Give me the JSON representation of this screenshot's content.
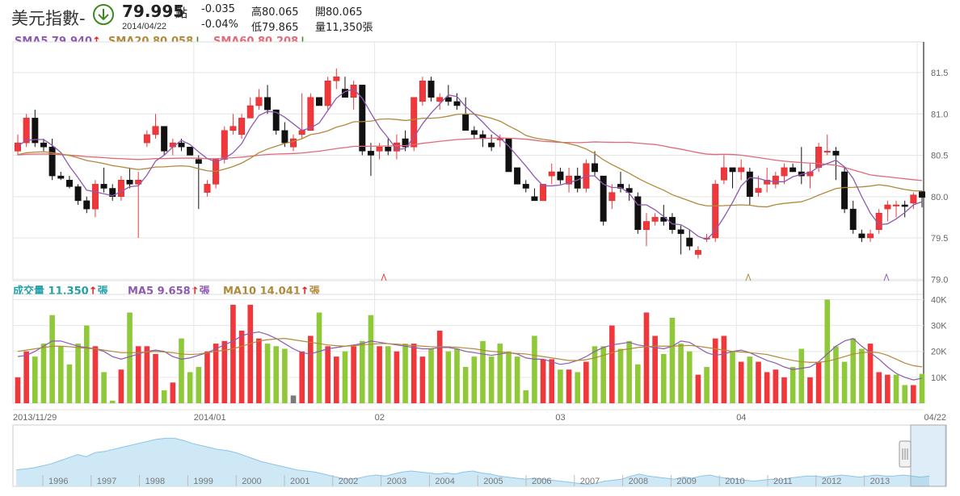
{
  "header": {
    "name": "美元指數-",
    "price": "79.995",
    "price_unit": "點",
    "date": "2014/04/22",
    "change": "-0.035",
    "change_pct": "-0.04%",
    "high": "高80.065",
    "low": "低79.865",
    "open": "開80.065",
    "volume": "量11,350張",
    "trend_icon": "down-arrow-circle-icon"
  },
  "legend_price": {
    "sma5": "SMA5 79.940",
    "sma5_dir": "↑",
    "sma20": "SMA20 80.058",
    "sma20_dir": "↓",
    "sma60": "SMA60 80.208",
    "sma60_dir": "↓"
  },
  "legend_volume": {
    "vol": "成交量 11,350",
    "vol_dir": "↑",
    "vol_unit": "張",
    "ma5": "MA5 9,658",
    "ma5_dir": "↑",
    "ma5_unit": "張",
    "ma10": "MA10 14,041",
    "ma10_dir": "↑",
    "ma10_unit": "張"
  },
  "overview_years": [
    "1996",
    "1997",
    "1998",
    "1999",
    "2000",
    "2001",
    "2002",
    "2003",
    "2004",
    "2005",
    "2006",
    "2007",
    "2008",
    "2009",
    "2010",
    "2011",
    "2012",
    "2013"
  ],
  "colors": {
    "up": "#f0373b",
    "down": "#111111",
    "vol_up": "#f0373b",
    "vol_down": "#8fc93a",
    "vol_flat": "#7a7a7a",
    "sma5": "#8e5ab0",
    "sma20": "#b08a3a",
    "sma60": "#e26a78",
    "cyan_label": "#22a0a8",
    "overview_fill": "#cfe8f5",
    "overview_line": "#8cc4e6"
  },
  "chart_data": [
    {
      "type": "candlestick",
      "title": "",
      "x_ticks": [
        "2013/11/29",
        "2014/01",
        "02",
        "03",
        "04",
        "04/22"
      ],
      "y_ticks": [
        "81.5",
        "81.0",
        "80.5",
        "80.0",
        "79.5",
        "79.0"
      ],
      "ylim": [
        79.0,
        81.8
      ],
      "ohlc": [
        [
          80.55,
          80.75,
          80.5,
          80.65
        ],
        [
          80.65,
          81.0,
          80.6,
          80.95
        ],
        [
          80.95,
          81.05,
          80.6,
          80.65
        ],
        [
          80.65,
          80.7,
          80.55,
          80.6
        ],
        [
          80.6,
          80.7,
          80.2,
          80.25
        ],
        [
          80.25,
          80.3,
          80.2,
          80.22
        ],
        [
          80.2,
          80.25,
          80.1,
          80.12
        ],
        [
          80.12,
          80.15,
          79.9,
          79.95
        ],
        [
          79.95,
          80.0,
          79.8,
          79.85
        ],
        [
          79.85,
          80.2,
          79.75,
          80.15
        ],
        [
          80.15,
          80.35,
          80.05,
          80.1
        ],
        [
          80.1,
          80.15,
          79.95,
          80.0
        ],
        [
          80.0,
          80.25,
          79.95,
          80.2
        ],
        [
          80.2,
          80.35,
          80.1,
          80.15
        ],
        [
          80.15,
          80.3,
          79.5,
          80.2
        ],
        [
          80.65,
          80.8,
          80.6,
          80.75
        ],
        [
          80.75,
          81.0,
          80.7,
          80.85
        ],
        [
          80.85,
          80.85,
          80.5,
          80.55
        ],
        [
          80.6,
          80.7,
          80.5,
          80.65
        ],
        [
          80.65,
          80.7,
          80.55,
          80.6
        ],
        [
          80.6,
          80.6,
          80.5,
          80.5
        ],
        [
          80.45,
          80.5,
          79.85,
          80.4
        ],
        [
          80.05,
          80.2,
          80.0,
          80.15
        ],
        [
          80.15,
          80.45,
          80.1,
          80.45
        ],
        [
          80.45,
          80.85,
          80.4,
          80.8
        ],
        [
          80.8,
          81.0,
          80.75,
          80.85
        ],
        [
          80.75,
          81.0,
          80.7,
          80.95
        ],
        [
          80.95,
          81.2,
          80.95,
          81.1
        ],
        [
          81.1,
          81.3,
          81.05,
          81.2
        ],
        [
          81.2,
          81.35,
          81.0,
          81.05
        ],
        [
          81.05,
          81.05,
          80.75,
          80.8
        ],
        [
          80.8,
          80.9,
          80.6,
          80.65
        ],
        [
          80.6,
          80.75,
          80.55,
          80.7
        ],
        [
          80.75,
          81.25,
          80.7,
          80.8
        ],
        [
          80.8,
          81.25,
          80.8,
          81.2
        ],
        [
          81.2,
          81.2,
          81.1,
          81.1
        ],
        [
          81.1,
          81.45,
          81.05,
          81.4
        ],
        [
          81.4,
          81.55,
          81.3,
          81.45
        ],
        [
          81.3,
          81.45,
          81.2,
          81.2
        ],
        [
          81.2,
          81.4,
          81.05,
          81.35
        ],
        [
          81.35,
          81.35,
          80.5,
          80.55
        ],
        [
          80.55,
          80.65,
          80.25,
          80.5
        ],
        [
          80.55,
          80.65,
          80.45,
          80.6
        ],
        [
          80.6,
          80.7,
          80.5,
          80.55
        ],
        [
          80.55,
          80.75,
          80.45,
          80.65
        ],
        [
          80.7,
          80.8,
          80.55,
          80.6
        ],
        [
          80.6,
          81.2,
          80.55,
          81.2
        ],
        [
          81.15,
          81.45,
          81.1,
          81.4
        ],
        [
          81.4,
          81.45,
          81.15,
          81.2
        ],
        [
          81.15,
          81.25,
          81.05,
          81.2
        ],
        [
          81.2,
          81.35,
          81.1,
          81.15
        ],
        [
          81.15,
          81.25,
          81.05,
          81.1
        ],
        [
          81.0,
          81.2,
          80.8,
          80.8
        ],
        [
          80.8,
          80.85,
          80.7,
          80.75
        ],
        [
          80.75,
          80.8,
          80.6,
          80.7
        ],
        [
          80.65,
          80.75,
          80.55,
          80.6
        ],
        [
          80.7,
          80.75,
          80.6,
          80.7
        ],
        [
          80.7,
          80.7,
          80.3,
          80.3
        ],
        [
          80.35,
          80.35,
          80.15,
          80.15
        ],
        [
          80.15,
          80.2,
          80.05,
          80.1
        ],
        [
          80.0,
          80.1,
          79.95,
          79.95
        ],
        [
          79.95,
          80.15,
          79.95,
          80.15
        ],
        [
          80.25,
          80.4,
          80.15,
          80.3
        ],
        [
          80.3,
          80.35,
          80.15,
          80.2
        ],
        [
          80.15,
          80.35,
          80.05,
          80.25
        ],
        [
          80.25,
          80.35,
          80.05,
          80.1
        ],
        [
          80.1,
          80.45,
          80.05,
          80.4
        ],
        [
          80.4,
          80.55,
          80.25,
          80.3
        ],
        [
          80.25,
          80.25,
          79.65,
          79.7
        ],
        [
          79.95,
          80.15,
          79.85,
          80.05
        ],
        [
          80.15,
          80.3,
          80.05,
          80.1
        ],
        [
          80.1,
          80.15,
          79.95,
          80.05
        ],
        [
          80.0,
          80.05,
          79.55,
          79.6
        ],
        [
          79.6,
          79.8,
          79.4,
          79.7
        ],
        [
          79.7,
          79.8,
          79.65,
          79.75
        ],
        [
          79.75,
          79.9,
          79.65,
          79.7
        ],
        [
          79.75,
          79.8,
          79.55,
          79.6
        ],
        [
          79.6,
          79.65,
          79.3,
          79.55
        ],
        [
          79.5,
          79.6,
          79.35,
          79.4
        ],
        [
          79.3,
          79.4,
          79.25,
          79.35
        ],
        [
          79.5,
          79.55,
          79.45,
          79.5
        ],
        [
          79.5,
          80.2,
          79.45,
          80.15
        ],
        [
          80.2,
          80.5,
          80.15,
          80.35
        ],
        [
          80.35,
          80.35,
          80.1,
          80.3
        ],
        [
          80.3,
          80.45,
          80.2,
          80.35
        ],
        [
          80.3,
          80.35,
          79.9,
          80.0
        ],
        [
          80.05,
          80.25,
          80.0,
          80.1
        ],
        [
          80.15,
          80.35,
          80.05,
          80.2
        ],
        [
          80.15,
          80.3,
          80.1,
          80.25
        ],
        [
          80.25,
          80.4,
          80.15,
          80.35
        ],
        [
          80.35,
          80.4,
          80.3,
          80.3
        ],
        [
          80.3,
          80.6,
          80.15,
          80.25
        ],
        [
          80.25,
          80.4,
          80.1,
          80.3
        ],
        [
          80.35,
          80.65,
          80.3,
          80.6
        ],
        [
          80.55,
          80.75,
          80.5,
          80.55
        ],
        [
          80.55,
          80.6,
          80.2,
          80.5
        ],
        [
          80.3,
          80.35,
          79.8,
          79.85
        ],
        [
          79.85,
          79.95,
          79.55,
          79.6
        ],
        [
          79.55,
          79.6,
          79.45,
          79.5
        ],
        [
          79.5,
          79.6,
          79.45,
          79.55
        ],
        [
          79.6,
          79.85,
          79.55,
          79.8
        ],
        [
          79.85,
          79.95,
          79.7,
          79.9
        ],
        [
          79.9,
          79.95,
          79.75,
          79.9
        ],
        [
          79.9,
          79.95,
          79.75,
          79.88
        ],
        [
          79.92,
          80.05,
          79.85,
          80.02
        ],
        [
          80.06,
          80.07,
          79.87,
          79.99
        ]
      ]
    },
    {
      "type": "bar",
      "title": "",
      "y_ticks": [
        "40K",
        "30K",
        "20K",
        "10K"
      ],
      "ylim": [
        0,
        42000
      ],
      "values": [
        10000,
        20000,
        18000,
        23000,
        34000,
        22000,
        15000,
        23000,
        30000,
        22000,
        12000,
        1000,
        13000,
        35000,
        22000,
        22000,
        19000,
        5000,
        8000,
        25000,
        12000,
        14000,
        20000,
        23000,
        24000,
        38000,
        28000,
        38000,
        25000,
        23000,
        22000,
        21000,
        3000,
        20000,
        26000,
        35000,
        22000,
        18000,
        20000,
        22000,
        24000,
        34000,
        22000,
        22000,
        20000,
        23000,
        23000,
        18000,
        21000,
        28000,
        20000,
        21000,
        14000,
        18000,
        24000,
        18000,
        23000,
        20000,
        18000,
        5000,
        26000,
        17000,
        17000,
        13000,
        13000,
        12000,
        16000,
        22000,
        22000,
        30000,
        21000,
        24000,
        15000,
        35000,
        26000,
        19000,
        33000,
        23000,
        20000,
        11000,
        14000,
        25000,
        26000,
        20000,
        16000,
        18000,
        16000,
        12000,
        13000,
        10000,
        14000,
        21000,
        10000,
        16000,
        40000,
        22000,
        16000,
        25000,
        21000,
        23000,
        12000,
        11000,
        11000,
        7000,
        7000,
        11350
      ],
      "series": [
        {
          "name": "MA5",
          "values": [
            18000,
            18500,
            20000,
            22000,
            24000,
            24000,
            23000,
            22000,
            21500,
            21000,
            20000,
            18000,
            17000,
            18000,
            19000,
            20000,
            20500,
            20000,
            18000,
            17000,
            17500,
            18500,
            19500,
            21000,
            22500,
            24000,
            26000,
            27000,
            27500,
            26500,
            25000,
            23000,
            21000,
            19500,
            19000,
            20000,
            21000,
            21500,
            22000,
            22500,
            23000,
            24000,
            23500,
            23000,
            22500,
            22000,
            21500,
            21000,
            21000,
            21500,
            21500,
            21000,
            20000,
            19500,
            19000,
            18500,
            19000,
            19500,
            19000,
            17500,
            17000,
            17000,
            16000,
            15000,
            15500,
            16500,
            18000,
            20000,
            21500,
            22500,
            23000,
            23500,
            22500,
            22000,
            21500,
            21000,
            22000,
            24000,
            23500,
            21500,
            19500,
            18500,
            19000,
            20000,
            20500,
            19500,
            18000,
            16500,
            15500,
            14000,
            13000,
            13500,
            14000,
            16000,
            19000,
            22000,
            24000,
            25000,
            22000,
            19500,
            17000,
            14000,
            11500,
            10000,
            9000,
            9658
          ]
        },
        {
          "name": "MA10",
          "values": [
            20000,
            20500,
            21000,
            21500,
            22000,
            22000,
            21800,
            21500,
            21200,
            21000,
            20500,
            20000,
            19500,
            19500,
            19500,
            19800,
            20000,
            19800,
            19500,
            19000,
            18800,
            19000,
            19500,
            20000,
            20500,
            21000,
            22000,
            23000,
            24000,
            24500,
            24800,
            25000,
            24500,
            24000,
            23500,
            23000,
            22500,
            22200,
            22000,
            22200,
            22500,
            22800,
            23000,
            23000,
            22800,
            22500,
            22200,
            22000,
            21800,
            21800,
            21800,
            21600,
            21300,
            21000,
            20500,
            20000,
            19800,
            19500,
            19200,
            19000,
            18500,
            18000,
            17500,
            17000,
            16500,
            16500,
            16800,
            17500,
            18500,
            19500,
            20500,
            21000,
            21500,
            21800,
            22000,
            22000,
            22000,
            22200,
            22300,
            22000,
            21500,
            21000,
            20500,
            20000,
            19800,
            19500,
            19200,
            18800,
            18000,
            17200,
            16500,
            16000,
            15800,
            15800,
            16200,
            17000,
            18000,
            19000,
            19500,
            19800,
            19500,
            18500,
            17000,
            15500,
            14500,
            14041
          ]
        }
      ]
    },
    {
      "type": "area",
      "title": "",
      "x_ticks": [
        "1996",
        "1997",
        "1998",
        "1999",
        "2000",
        "2001",
        "2002",
        "2003",
        "2004",
        "2005",
        "2006",
        "2007",
        "2008",
        "2009",
        "2010",
        "2011",
        "2012",
        "2013"
      ],
      "values": [
        86,
        87,
        88,
        90,
        92,
        95,
        98,
        101,
        99,
        103,
        104,
        106,
        108,
        110,
        112,
        114,
        116,
        117,
        117,
        115,
        112,
        110,
        108,
        106,
        105,
        103,
        100,
        97,
        94,
        92,
        90,
        88,
        86,
        85,
        84,
        82,
        80,
        78,
        77,
        78,
        80,
        81,
        80,
        82,
        84,
        85,
        84,
        83,
        82,
        83,
        82,
        84,
        85,
        83,
        82,
        80,
        79,
        78,
        77,
        78,
        77,
        76,
        75,
        74,
        73,
        72,
        73,
        75,
        76,
        77,
        80,
        82,
        80,
        79,
        78,
        77,
        79,
        78,
        80,
        81,
        79,
        78,
        77,
        76,
        75,
        76,
        77,
        76,
        78,
        79,
        80,
        80,
        79,
        80,
        81,
        80,
        79,
        80,
        81,
        80,
        80,
        81,
        80,
        79,
        80
      ]
    }
  ]
}
